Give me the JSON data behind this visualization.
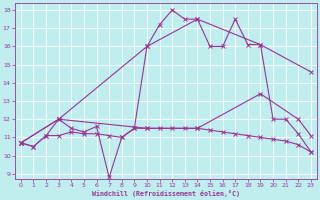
{
  "xlabel": "Windchill (Refroidissement éolien,°C)",
  "bg_color": "#c0eeee",
  "grid_color": "#ffffff",
  "line_color": "#993399",
  "xlim": [
    -0.5,
    23.5
  ],
  "ylim": [
    8.7,
    18.4
  ],
  "xticks": [
    0,
    1,
    2,
    3,
    4,
    5,
    6,
    7,
    8,
    9,
    10,
    11,
    12,
    13,
    14,
    15,
    16,
    17,
    18,
    19,
    20,
    21,
    22,
    23
  ],
  "yticks": [
    9,
    10,
    11,
    12,
    13,
    14,
    15,
    16,
    17,
    18
  ],
  "lines": [
    {
      "x": [
        0,
        1,
        2,
        3,
        4,
        5,
        6,
        7,
        8,
        9,
        10,
        11,
        12,
        13,
        14,
        15,
        16,
        17,
        18,
        19,
        20,
        21,
        22,
        23
      ],
      "y": [
        10.7,
        10.5,
        11.1,
        12.0,
        11.5,
        11.3,
        11.6,
        8.8,
        11.0,
        11.5,
        16.0,
        17.2,
        18.0,
        17.5,
        17.5,
        16.0,
        16.0,
        17.5,
        16.1,
        16.1,
        12.0,
        12.0,
        11.2,
        10.2
      ]
    },
    {
      "x": [
        0,
        1,
        2,
        3,
        4,
        5,
        6,
        7,
        8,
        9,
        10,
        11,
        12,
        13,
        14,
        15,
        16,
        17,
        18,
        19,
        20,
        21,
        22,
        23
      ],
      "y": [
        10.7,
        10.5,
        11.1,
        11.1,
        11.3,
        11.2,
        11.2,
        11.1,
        11.0,
        11.5,
        11.5,
        11.5,
        11.5,
        11.5,
        11.5,
        11.4,
        11.3,
        11.2,
        11.1,
        11.0,
        10.9,
        10.8,
        10.6,
        10.2
      ]
    },
    {
      "x": [
        0,
        3,
        10,
        14,
        19,
        23
      ],
      "y": [
        10.7,
        12.0,
        16.0,
        17.5,
        16.1,
        14.6
      ]
    },
    {
      "x": [
        0,
        3,
        10,
        14,
        19,
        22,
        23
      ],
      "y": [
        10.7,
        12.0,
        11.5,
        11.5,
        13.4,
        12.0,
        11.1
      ]
    }
  ]
}
